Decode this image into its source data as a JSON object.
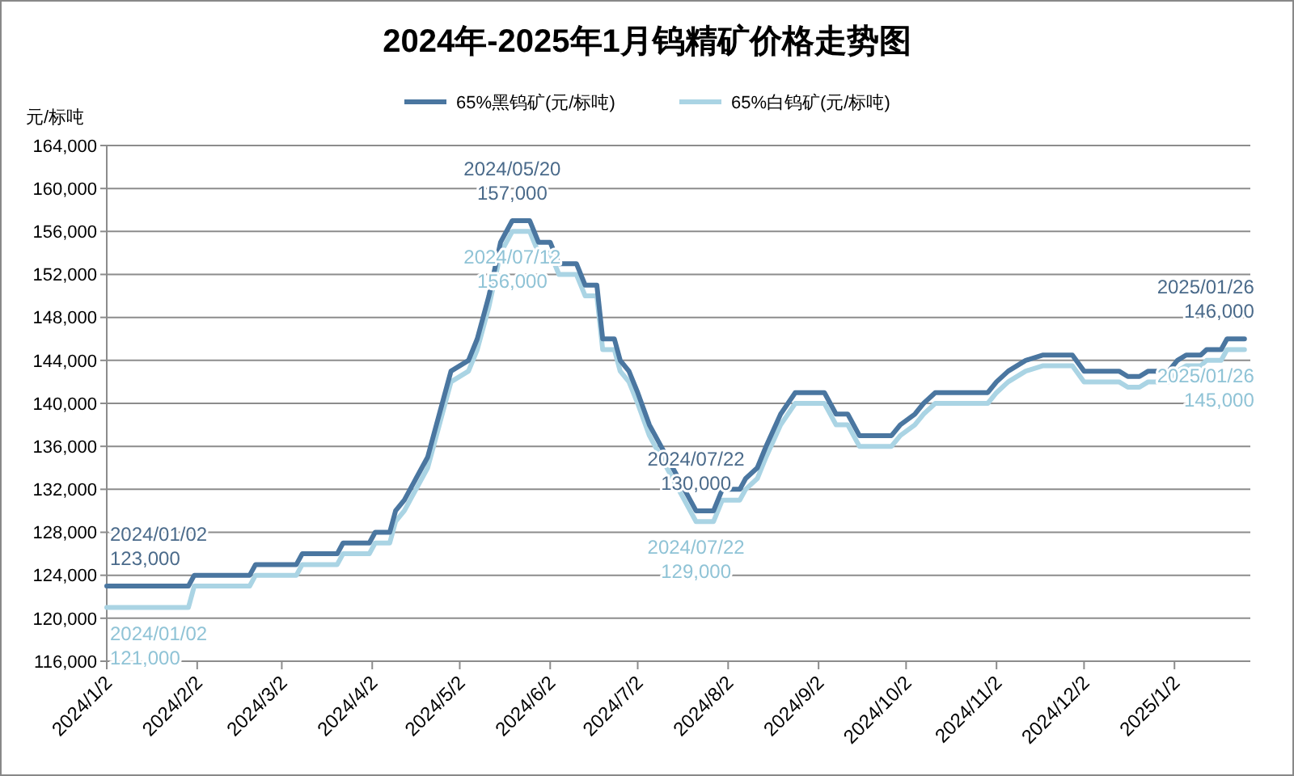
{
  "chart_data": {
    "type": "line",
    "title": "2024年-2025年1月钨精矿价格走势图",
    "ylabel": "元/标吨",
    "legend": "top",
    "grid": "y",
    "marker": "none",
    "line_style": "solid",
    "xlim": [
      "2024-01-02",
      "2025-01-28"
    ],
    "xticks": [
      {
        "value": "2024-01-02",
        "label": "2024/1/2"
      },
      {
        "value": "2024-02-02",
        "label": "2024/2/2"
      },
      {
        "value": "2024-03-02",
        "label": "2024/3/2"
      },
      {
        "value": "2024-04-02",
        "label": "2024/4/2"
      },
      {
        "value": "2024-05-02",
        "label": "2024/5/2"
      },
      {
        "value": "2024-06-02",
        "label": "2024/6/2"
      },
      {
        "value": "2024-07-02",
        "label": "2024/7/2"
      },
      {
        "value": "2024-08-02",
        "label": "2024/8/2"
      },
      {
        "value": "2024-09-02",
        "label": "2024/9/2"
      },
      {
        "value": "2024-10-02",
        "label": "2024/10/2"
      },
      {
        "value": "2024-11-02",
        "label": "2024/11/2"
      },
      {
        "value": "2024-12-02",
        "label": "2024/12/2"
      },
      {
        "value": "2025-01-02",
        "label": "2025/1/2"
      }
    ],
    "ylim": [
      116000,
      164000
    ],
    "yticks": [
      {
        "value": 116000,
        "label": "116,000"
      },
      {
        "value": 120000,
        "label": "120,000"
      },
      {
        "value": 124000,
        "label": "124,000"
      },
      {
        "value": 128000,
        "label": "128,000"
      },
      {
        "value": 132000,
        "label": "132,000"
      },
      {
        "value": 136000,
        "label": "136,000"
      },
      {
        "value": 140000,
        "label": "140,000"
      },
      {
        "value": 144000,
        "label": "144,000"
      },
      {
        "value": 148000,
        "label": "148,000"
      },
      {
        "value": 152000,
        "label": "152,000"
      },
      {
        "value": 156000,
        "label": "156,000"
      },
      {
        "value": 160000,
        "label": "160,000"
      },
      {
        "value": 164000,
        "label": "164,000"
      }
    ],
    "series": [
      {
        "name": "65%黑钨矿(元/标吨)",
        "color": "#4a76a0",
        "x": [
          "2024-01-02",
          "2024-01-30",
          "2024-02-01",
          "2024-02-20",
          "2024-02-22",
          "2024-03-07",
          "2024-03-09",
          "2024-03-21",
          "2024-03-23",
          "2024-04-01",
          "2024-04-03",
          "2024-04-08",
          "2024-04-10",
          "2024-04-13",
          "2024-04-17",
          "2024-04-21",
          "2024-04-24",
          "2024-04-29",
          "2024-05-05",
          "2024-05-08",
          "2024-05-12",
          "2024-05-16",
          "2024-05-20",
          "2024-05-26",
          "2024-05-29",
          "2024-06-02",
          "2024-06-05",
          "2024-06-11",
          "2024-06-14",
          "2024-06-18",
          "2024-06-20",
          "2024-06-24",
          "2024-06-26",
          "2024-06-29",
          "2024-07-02",
          "2024-07-06",
          "2024-07-10",
          "2024-07-14",
          "2024-07-18",
          "2024-07-22",
          "2024-07-28",
          "2024-07-31",
          "2024-08-06",
          "2024-08-08",
          "2024-08-12",
          "2024-08-15",
          "2024-08-20",
          "2024-08-25",
          "2024-09-04",
          "2024-09-08",
          "2024-09-12",
          "2024-09-16",
          "2024-09-27",
          "2024-09-30",
          "2024-10-05",
          "2024-10-08",
          "2024-10-12",
          "2024-10-30",
          "2024-11-02",
          "2024-11-06",
          "2024-11-12",
          "2024-11-18",
          "2024-11-28",
          "2024-12-02",
          "2024-12-14",
          "2024-12-17",
          "2024-12-21",
          "2024-12-24",
          "2024-12-31",
          "2025-01-03",
          "2025-01-06",
          "2025-01-11",
          "2025-01-13",
          "2025-01-18",
          "2025-01-20",
          "2025-01-26"
        ],
        "values": [
          123000,
          123000,
          124000,
          124000,
          125000,
          125000,
          126000,
          126000,
          127000,
          127000,
          128000,
          128000,
          130000,
          131000,
          133000,
          135000,
          138000,
          143000,
          144000,
          146000,
          150000,
          155000,
          157000,
          157000,
          155000,
          155000,
          153000,
          153000,
          151000,
          151000,
          146000,
          146000,
          144000,
          143000,
          141000,
          138000,
          136000,
          134000,
          132000,
          130000,
          130000,
          132000,
          132000,
          133000,
          134000,
          136000,
          139000,
          141000,
          141000,
          139000,
          139000,
          137000,
          137000,
          138000,
          139000,
          140000,
          141000,
          141000,
          142000,
          143000,
          144000,
          144500,
          144500,
          143000,
          143000,
          142500,
          142500,
          143000,
          143000,
          144000,
          144500,
          144500,
          145000,
          145000,
          146000,
          146000
        ]
      },
      {
        "name": "65%白钨矿(元/标吨)",
        "color": "#aad4e4",
        "x": [
          "2024-01-02",
          "2024-01-30",
          "2024-02-01",
          "2024-02-20",
          "2024-02-22",
          "2024-03-07",
          "2024-03-09",
          "2024-03-21",
          "2024-03-23",
          "2024-04-01",
          "2024-04-03",
          "2024-04-08",
          "2024-04-10",
          "2024-04-13",
          "2024-04-17",
          "2024-04-21",
          "2024-04-24",
          "2024-04-29",
          "2024-05-05",
          "2024-05-08",
          "2024-05-12",
          "2024-05-16",
          "2024-05-20",
          "2024-05-26",
          "2024-05-29",
          "2024-06-02",
          "2024-06-05",
          "2024-06-11",
          "2024-06-14",
          "2024-06-18",
          "2024-06-20",
          "2024-06-24",
          "2024-06-26",
          "2024-06-29",
          "2024-07-02",
          "2024-07-06",
          "2024-07-10",
          "2024-07-14",
          "2024-07-18",
          "2024-07-22",
          "2024-07-28",
          "2024-07-31",
          "2024-08-06",
          "2024-08-08",
          "2024-08-12",
          "2024-08-15",
          "2024-08-20",
          "2024-08-25",
          "2024-09-04",
          "2024-09-08",
          "2024-09-12",
          "2024-09-16",
          "2024-09-27",
          "2024-09-30",
          "2024-10-05",
          "2024-10-08",
          "2024-10-12",
          "2024-10-30",
          "2024-11-02",
          "2024-11-06",
          "2024-11-12",
          "2024-11-18",
          "2024-11-28",
          "2024-12-02",
          "2024-12-14",
          "2024-12-17",
          "2024-12-21",
          "2024-12-24",
          "2024-12-31",
          "2025-01-03",
          "2025-01-06",
          "2025-01-11",
          "2025-01-13",
          "2025-01-18",
          "2025-01-20",
          "2025-01-26"
        ],
        "values": [
          121000,
          121000,
          123000,
          123000,
          124000,
          124000,
          125000,
          125000,
          126000,
          126000,
          127000,
          127000,
          129000,
          130000,
          132000,
          134000,
          137000,
          142000,
          143000,
          145000,
          149000,
          154000,
          156000,
          156000,
          154000,
          154000,
          152000,
          152000,
          150000,
          150000,
          145000,
          145000,
          143000,
          142000,
          140000,
          137000,
          135000,
          133000,
          131000,
          129000,
          129000,
          131000,
          131000,
          132000,
          133000,
          135000,
          138000,
          140000,
          140000,
          138000,
          138000,
          136000,
          136000,
          137000,
          138000,
          139000,
          140000,
          140000,
          141000,
          142000,
          143000,
          143500,
          143500,
          142000,
          142000,
          141500,
          141500,
          142000,
          142000,
          143000,
          143500,
          143500,
          144000,
          144000,
          145000,
          145000
        ]
      }
    ],
    "annotations": [
      {
        "text": "2024/01/02\n123,000",
        "x": "2024-01-02",
        "y": 123000
      },
      {
        "text": "2024/01/02\n121,000",
        "x": "2024-01-02",
        "y": 121000
      },
      {
        "text": "2024/05/20\n157,000",
        "x": "2024-05-20",
        "y": 157000
      },
      {
        "text": "2024/07/12\n156,000",
        "x": "2024-05-20",
        "y": 156000
      },
      {
        "text": "2024/07/22\n130,000",
        "x": "2024-07-22",
        "y": 130000
      },
      {
        "text": "2024/07/22\n129,000",
        "x": "2024-07-22",
        "y": 129000
      },
      {
        "text": "2025/01/26\n146,000",
        "x": "2025-01-26",
        "y": 146000
      },
      {
        "text": "2025/01/26\n145,000",
        "x": "2025-01-26",
        "y": 145000
      }
    ]
  }
}
